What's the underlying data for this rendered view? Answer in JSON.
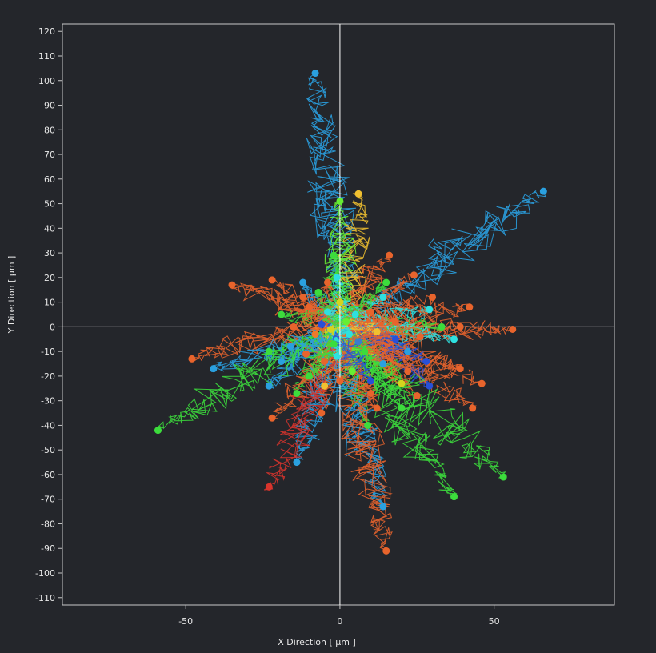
{
  "chart_data": {
    "type": "scatter",
    "subtype": "cell-migration-tracks",
    "title": "",
    "xlabel": "X Direction [ μm ]",
    "ylabel": "Y Direction [ μm ]",
    "xlim": [
      -90,
      89
    ],
    "ylim": [
      -113,
      123
    ],
    "x_ticks": [
      -50,
      0,
      50
    ],
    "y_ticks": [
      120,
      110,
      100,
      90,
      80,
      70,
      60,
      50,
      40,
      30,
      20,
      10,
      0,
      -10,
      -20,
      -30,
      -40,
      -50,
      -60,
      -70,
      -80,
      -90,
      -100,
      -110
    ],
    "grid": false,
    "origin_lines": true,
    "colors": {
      "background": "#24262b",
      "plot_border": "#c8c8c8",
      "origin_lines": "#ffffff",
      "text": "#e8e8e8"
    },
    "track_colors": [
      "#e8642c",
      "#f07a2a",
      "#2aa0e0",
      "#1e6e8c",
      "#3cdc3c",
      "#66ee33",
      "#d4d41e",
      "#f0c030",
      "#2ee0e0",
      "#2850d8",
      "#d8342c",
      "#3c7ccc"
    ],
    "tracks": [
      {
        "color": "#2aa0e0",
        "end": [
          -8,
          103
        ]
      },
      {
        "color": "#f0c030",
        "end": [
          6,
          54
        ]
      },
      {
        "color": "#2aa0e0",
        "end": [
          66,
          55
        ]
      },
      {
        "color": "#66ee33",
        "end": [
          0,
          51
        ]
      },
      {
        "color": "#e8642c",
        "end": [
          -35,
          17
        ]
      },
      {
        "color": "#e8642c",
        "end": [
          16,
          29
        ]
      },
      {
        "color": "#3cdc3c",
        "end": [
          -2,
          29
        ]
      },
      {
        "color": "#e8642c",
        "end": [
          -22,
          19
        ]
      },
      {
        "color": "#2aa0e0",
        "end": [
          -12,
          18
        ]
      },
      {
        "color": "#e8642c",
        "end": [
          -4,
          18
        ]
      },
      {
        "color": "#2ee0e0",
        "end": [
          -1,
          20
        ]
      },
      {
        "color": "#e8642c",
        "end": [
          24,
          21
        ]
      },
      {
        "color": "#e8642c",
        "end": [
          30,
          12
        ]
      },
      {
        "color": "#2ee0e0",
        "end": [
          29,
          7
        ]
      },
      {
        "color": "#e8642c",
        "end": [
          42,
          8
        ]
      },
      {
        "color": "#e8642c",
        "end": [
          -10,
          8
        ]
      },
      {
        "color": "#d4d41e",
        "end": [
          0,
          10
        ]
      },
      {
        "color": "#3cdc3c",
        "end": [
          -19,
          5
        ]
      },
      {
        "color": "#e8642c",
        "end": [
          56,
          -1
        ]
      },
      {
        "color": "#e8642c",
        "end": [
          39,
          0
        ]
      },
      {
        "color": "#3cdc3c",
        "end": [
          33,
          0
        ]
      },
      {
        "color": "#2ee0e0",
        "end": [
          37,
          -5
        ]
      },
      {
        "color": "#2850d8",
        "end": [
          18,
          -5
        ]
      },
      {
        "color": "#2aa0e0",
        "end": [
          22,
          -10
        ]
      },
      {
        "color": "#3cdc3c",
        "end": [
          -23,
          -10
        ]
      },
      {
        "color": "#e8642c",
        "end": [
          -48,
          -13
        ]
      },
      {
        "color": "#2aa0e0",
        "end": [
          -41,
          -17
        ]
      },
      {
        "color": "#e8642c",
        "end": [
          -11,
          -11
        ]
      },
      {
        "color": "#2aa0e0",
        "end": [
          -19,
          -14
        ]
      },
      {
        "color": "#e8642c",
        "end": [
          -5,
          -14
        ]
      },
      {
        "color": "#2aa0e0",
        "end": [
          14,
          -15
        ]
      },
      {
        "color": "#e8642c",
        "end": [
          39,
          -17
        ]
      },
      {
        "color": "#2850d8",
        "end": [
          28,
          -14
        ]
      },
      {
        "color": "#2aa0e0",
        "end": [
          -23,
          -24
        ]
      },
      {
        "color": "#d4d41e",
        "end": [
          20,
          -23
        ]
      },
      {
        "color": "#e8642c",
        "end": [
          46,
          -23
        ]
      },
      {
        "color": "#3cdc3c",
        "end": [
          -14,
          -27
        ]
      },
      {
        "color": "#f0c030",
        "end": [
          -5,
          -24
        ]
      },
      {
        "color": "#e8642c",
        "end": [
          10,
          -27
        ]
      },
      {
        "color": "#e8642c",
        "end": [
          25,
          -28
        ]
      },
      {
        "color": "#2850d8",
        "end": [
          29,
          -24
        ]
      },
      {
        "color": "#e8642c",
        "end": [
          43,
          -33
        ]
      },
      {
        "color": "#e8642c",
        "end": [
          12,
          -33
        ]
      },
      {
        "color": "#3cdc3c",
        "end": [
          20,
          -33
        ]
      },
      {
        "color": "#e8642c",
        "end": [
          -22,
          -37
        ]
      },
      {
        "color": "#e8642c",
        "end": [
          -6,
          -35
        ]
      },
      {
        "color": "#3cdc3c",
        "end": [
          9,
          -40
        ]
      },
      {
        "color": "#3cdc3c",
        "end": [
          -59,
          -42
        ]
      },
      {
        "color": "#2aa0e0",
        "end": [
          -14,
          -55
        ]
      },
      {
        "color": "#3cdc3c",
        "end": [
          53,
          -61
        ]
      },
      {
        "color": "#d8342c",
        "end": [
          -23,
          -65
        ]
      },
      {
        "color": "#3cdc3c",
        "end": [
          37,
          -69
        ]
      },
      {
        "color": "#2aa0e0",
        "end": [
          14,
          -73
        ]
      },
      {
        "color": "#e8642c",
        "end": [
          15,
          -91
        ]
      },
      {
        "color": "#2ee0e0",
        "end": [
          5,
          5
        ]
      },
      {
        "color": "#2ee0e0",
        "end": [
          3,
          -3
        ]
      },
      {
        "color": "#3cdc3c",
        "end": [
          -2,
          -7
        ]
      },
      {
        "color": "#66ee33",
        "end": [
          2,
          2
        ]
      },
      {
        "color": "#e8642c",
        "end": [
          10,
          6
        ]
      },
      {
        "color": "#f07a2a",
        "end": [
          -8,
          -3
        ]
      },
      {
        "color": "#2850d8",
        "end": [
          -6,
          1
        ]
      },
      {
        "color": "#3cdc3c",
        "end": [
          8,
          -10
        ]
      },
      {
        "color": "#e8642c",
        "end": [
          -15,
          0
        ]
      },
      {
        "color": "#2ee0e0",
        "end": [
          14,
          12
        ]
      },
      {
        "color": "#d4d41e",
        "end": [
          -3,
          -1
        ]
      },
      {
        "color": "#3c7ccc",
        "end": [
          6,
          -6
        ]
      },
      {
        "color": "#e8642c",
        "end": [
          18,
          2
        ]
      },
      {
        "color": "#3cdc3c",
        "end": [
          -10,
          -20
        ]
      },
      {
        "color": "#e8642c",
        "end": [
          22,
          -18
        ]
      },
      {
        "color": "#2ee0e0",
        "end": [
          -4,
          6
        ]
      },
      {
        "color": "#66ee33",
        "end": [
          4,
          -18
        ]
      },
      {
        "color": "#e8642c",
        "end": [
          -12,
          12
        ]
      },
      {
        "color": "#3cdc3c",
        "end": [
          15,
          18
        ]
      },
      {
        "color": "#2aa0e0",
        "end": [
          -16,
          -8
        ]
      },
      {
        "color": "#e8642c",
        "end": [
          0,
          -22
        ]
      },
      {
        "color": "#f0c030",
        "end": [
          12,
          -2
        ]
      },
      {
        "color": "#3cdc3c",
        "end": [
          -7,
          14
        ]
      },
      {
        "color": "#e8642c",
        "end": [
          26,
          -4
        ]
      },
      {
        "color": "#2ee0e0",
        "end": [
          -1,
          -12
        ]
      },
      {
        "color": "#2850d8",
        "end": [
          10,
          -22
        ]
      }
    ]
  }
}
